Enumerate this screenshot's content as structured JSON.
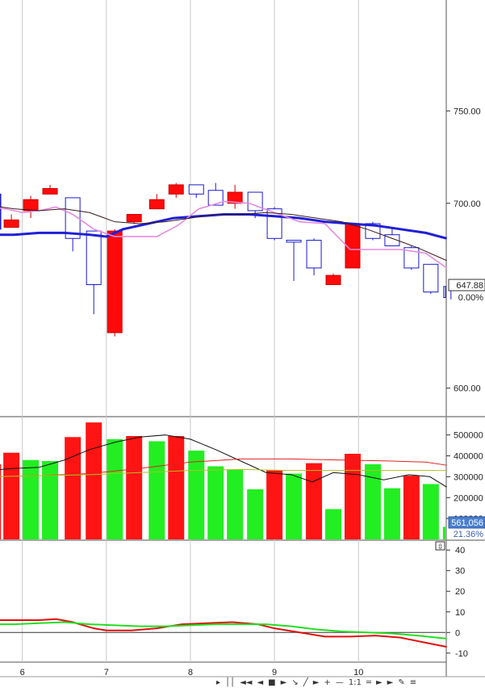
{
  "chart_data": [
    {
      "type": "candlestick",
      "panel": "price",
      "x_tick_labels": [
        "6",
        "7",
        "8",
        "9",
        "10"
      ],
      "x_tick_positions": [
        6,
        7,
        8,
        9,
        10
      ],
      "x_range": [
        5.6,
        10.9
      ],
      "y_tick_labels": [
        "750.00",
        "700.00",
        "600.00"
      ],
      "y_tick_values": [
        750,
        700,
        600
      ],
      "y_range": [
        585,
        810
      ],
      "last_price_label": "647.88",
      "change_label": "0.00%",
      "candles": [
        {
          "x": 5.65,
          "open": 686,
          "high": 705,
          "low": 679,
          "close": 705,
          "dir": "up"
        },
        {
          "x": 5.87,
          "open": 691,
          "high": 694,
          "low": 687,
          "close": 687,
          "dir": "down"
        },
        {
          "x": 6.1,
          "open": 702,
          "high": 704,
          "low": 692,
          "close": 696,
          "dir": "down"
        },
        {
          "x": 6.33,
          "open": 708,
          "high": 710,
          "low": 705,
          "close": 705,
          "dir": "down"
        },
        {
          "x": 6.6,
          "open": 681,
          "high": 703,
          "low": 674,
          "close": 703,
          "dir": "up"
        },
        {
          "x": 6.85,
          "open": 656,
          "high": 685,
          "low": 640,
          "close": 685,
          "dir": "up"
        },
        {
          "x": 7.1,
          "open": 685,
          "high": 686,
          "low": 628,
          "close": 630,
          "dir": "down"
        },
        {
          "x": 7.33,
          "open": 694,
          "high": 694,
          "low": 689,
          "close": 690,
          "dir": "down"
        },
        {
          "x": 7.6,
          "open": 702,
          "high": 705,
          "low": 697,
          "close": 697,
          "dir": "down"
        },
        {
          "x": 7.83,
          "open": 710,
          "high": 711,
          "low": 703,
          "close": 705,
          "dir": "down"
        },
        {
          "x": 8.07,
          "open": 705,
          "high": 710,
          "low": 703,
          "close": 710,
          "dir": "up"
        },
        {
          "x": 8.3,
          "open": 699,
          "high": 711,
          "low": 699,
          "close": 707,
          "dir": "up"
        },
        {
          "x": 8.53,
          "open": 706,
          "high": 710,
          "low": 697,
          "close": 700,
          "dir": "down"
        },
        {
          "x": 8.77,
          "open": 696,
          "high": 706,
          "low": 692,
          "close": 706,
          "dir": "up"
        },
        {
          "x": 9.0,
          "open": 681,
          "high": 698,
          "low": 680,
          "close": 697,
          "dir": "up"
        },
        {
          "x": 9.23,
          "open": 679,
          "high": 680,
          "low": 658,
          "close": 680,
          "dir": "up"
        },
        {
          "x": 9.47,
          "open": 665,
          "high": 681,
          "low": 661,
          "close": 680,
          "dir": "up"
        },
        {
          "x": 9.7,
          "open": 661,
          "high": 662,
          "low": 656,
          "close": 656,
          "dir": "down"
        },
        {
          "x": 9.93,
          "open": 689,
          "high": 689,
          "low": 665,
          "close": 665,
          "dir": "down"
        },
        {
          "x": 10.17,
          "open": 681,
          "high": 690,
          "low": 680,
          "close": 689,
          "dir": "up"
        },
        {
          "x": 10.4,
          "open": 677,
          "high": 687,
          "low": 677,
          "close": 683,
          "dir": "up"
        },
        {
          "x": 10.63,
          "open": 665,
          "high": 677,
          "low": 664,
          "close": 676,
          "dir": "up"
        },
        {
          "x": 10.86,
          "open": 652,
          "high": 667,
          "low": 651,
          "close": 667,
          "dir": "up"
        },
        {
          "x": 11.1,
          "open": 649,
          "high": 656,
          "low": 648,
          "close": 655,
          "dir": "up"
        }
      ],
      "lines": [
        {
          "color": "#1f1fd6",
          "width": 3,
          "points": [
            [
              5.6,
              683
            ],
            [
              5.9,
              683
            ],
            [
              6.2,
              684
            ],
            [
              6.5,
              684
            ],
            [
              6.8,
              683
            ],
            [
              7.0,
              682
            ],
            [
              7.2,
              686
            ],
            [
              7.5,
              689
            ],
            [
              7.8,
              692
            ],
            [
              8.1,
              693
            ],
            [
              8.4,
              694
            ],
            [
              8.7,
              694
            ],
            [
              9.0,
              693
            ],
            [
              9.3,
              692
            ],
            [
              9.6,
              690
            ],
            [
              9.9,
              689
            ],
            [
              10.2,
              688
            ],
            [
              10.5,
              686
            ],
            [
              10.8,
              684
            ],
            [
              11.05,
              681
            ]
          ]
        },
        {
          "color": "#e58ae0",
          "width": 1.6,
          "points": [
            [
              5.6,
              698
            ],
            [
              5.8,
              697
            ],
            [
              6.0,
              695
            ],
            [
              6.2,
              696
            ],
            [
              6.4,
              698
            ],
            [
              6.6,
              694
            ],
            [
              6.85,
              686
            ],
            [
              7.1,
              682
            ],
            [
              7.35,
              682
            ],
            [
              7.6,
              682
            ],
            [
              7.85,
              688
            ],
            [
              8.1,
              697
            ],
            [
              8.4,
              701
            ],
            [
              8.7,
              700
            ],
            [
              9.0,
              695
            ],
            [
              9.3,
              690
            ],
            [
              9.6,
              689
            ],
            [
              9.9,
              675
            ],
            [
              10.2,
              675
            ],
            [
              10.5,
              675
            ],
            [
              10.8,
              673
            ],
            [
              11.05,
              665
            ]
          ]
        },
        {
          "color": "#3a1a1a",
          "width": 1,
          "points": [
            [
              5.6,
              699
            ],
            [
              5.9,
              697
            ],
            [
              6.2,
              696
            ],
            [
              6.5,
              697
            ],
            [
              6.8,
              695
            ],
            [
              7.1,
              690
            ],
            [
              7.4,
              689
            ],
            [
              7.7,
              690
            ],
            [
              8.0,
              692
            ],
            [
              8.3,
              694
            ],
            [
              8.6,
              694
            ],
            [
              8.9,
              695
            ],
            [
              9.2,
              694
            ],
            [
              9.5,
              692
            ],
            [
              9.8,
              690
            ],
            [
              10.1,
              686
            ],
            [
              10.4,
              681
            ],
            [
              10.7,
              676
            ],
            [
              11.05,
              669
            ]
          ]
        }
      ]
    },
    {
      "type": "bar",
      "panel": "volume",
      "y_tick_labels": [
        "500000",
        "400000",
        "300000",
        "200000",
        "100000"
      ],
      "y_tick_values": [
        500000,
        400000,
        300000,
        200000,
        100000
      ],
      "y_range": [
        0,
        580000
      ],
      "value_label": "561,056",
      "pct_label": "21.36%",
      "bars": [
        {
          "x": 5.65,
          "value": 360000,
          "color": "#ff1414"
        },
        {
          "x": 5.87,
          "value": 415000,
          "color": "#ff1414"
        },
        {
          "x": 6.1,
          "value": 380000,
          "color": "#22ee22"
        },
        {
          "x": 6.33,
          "value": 375000,
          "color": "#22ee22"
        },
        {
          "x": 6.6,
          "value": 490000,
          "color": "#ff1414"
        },
        {
          "x": 6.85,
          "value": 560000,
          "color": "#ff1414"
        },
        {
          "x": 7.1,
          "value": 480000,
          "color": "#22ee22"
        },
        {
          "x": 7.33,
          "value": 495000,
          "color": "#ff1414"
        },
        {
          "x": 7.6,
          "value": 470000,
          "color": "#22ee22"
        },
        {
          "x": 7.83,
          "value": 495000,
          "color": "#ff1414"
        },
        {
          "x": 8.07,
          "value": 425000,
          "color": "#22ee22"
        },
        {
          "x": 8.3,
          "value": 350000,
          "color": "#22ee22"
        },
        {
          "x": 8.53,
          "value": 335000,
          "color": "#22ee22"
        },
        {
          "x": 8.77,
          "value": 240000,
          "color": "#22ee22"
        },
        {
          "x": 9.0,
          "value": 330000,
          "color": "#ff1414"
        },
        {
          "x": 9.23,
          "value": 315000,
          "color": "#22ee22"
        },
        {
          "x": 9.47,
          "value": 365000,
          "color": "#ff1414"
        },
        {
          "x": 9.7,
          "value": 145000,
          "color": "#22ee22"
        },
        {
          "x": 9.93,
          "value": 410000,
          "color": "#ff1414"
        },
        {
          "x": 10.17,
          "value": 360000,
          "color": "#22ee22"
        },
        {
          "x": 10.4,
          "value": 245000,
          "color": "#22ee22"
        },
        {
          "x": 10.63,
          "value": 305000,
          "color": "#ff1414"
        },
        {
          "x": 10.86,
          "value": 265000,
          "color": "#22ee22"
        },
        {
          "x": 11.1,
          "value": 60000,
          "color": "#22ee22"
        }
      ],
      "lines": [
        {
          "color": "#111111",
          "width": 1,
          "points": [
            [
              5.6,
              330000
            ],
            [
              5.9,
              340000
            ],
            [
              6.2,
              345000
            ],
            [
              6.5,
              380000
            ],
            [
              6.8,
              430000
            ],
            [
              7.1,
              465000
            ],
            [
              7.4,
              490000
            ],
            [
              7.7,
              500000
            ],
            [
              8.0,
              480000
            ],
            [
              8.3,
              430000
            ],
            [
              8.6,
              375000
            ],
            [
              8.9,
              320000
            ],
            [
              9.2,
              310000
            ],
            [
              9.45,
              275000
            ],
            [
              9.7,
              320000
            ],
            [
              10.0,
              310000
            ],
            [
              10.3,
              285000
            ],
            [
              10.6,
              310000
            ],
            [
              10.85,
              300000
            ],
            [
              11.05,
              250000
            ]
          ]
        },
        {
          "color": "#e02020",
          "width": 1,
          "points": [
            [
              5.6,
              300000
            ],
            [
              6.2,
              305000
            ],
            [
              6.8,
              315000
            ],
            [
              7.4,
              340000
            ],
            [
              8.0,
              370000
            ],
            [
              8.6,
              385000
            ],
            [
              9.2,
              385000
            ],
            [
              9.8,
              380000
            ],
            [
              10.4,
              375000
            ],
            [
              10.8,
              370000
            ],
            [
              11.05,
              355000
            ]
          ]
        },
        {
          "color": "#b0c020",
          "width": 1,
          "points": [
            [
              5.6,
              300000
            ],
            [
              6.2,
              305000
            ],
            [
              6.8,
              310000
            ],
            [
              7.4,
              320000
            ],
            [
              8.0,
              330000
            ],
            [
              8.6,
              335000
            ],
            [
              9.2,
              330000
            ],
            [
              9.8,
              330000
            ],
            [
              10.4,
              330000
            ],
            [
              11.05,
              330000
            ]
          ]
        }
      ]
    },
    {
      "type": "line",
      "panel": "oscillator",
      "y_tick_labels": [
        "40",
        "30",
        "20",
        "10",
        "0",
        "-10"
      ],
      "y_tick_values": [
        40,
        30,
        20,
        10,
        0,
        -10
      ],
      "y_range": [
        -14,
        44
      ],
      "series": [
        {
          "color": "#e01010",
          "width": 2,
          "values": [
            [
              5.6,
              6
            ],
            [
              5.9,
              6
            ],
            [
              6.2,
              6
            ],
            [
              6.4,
              6.5
            ],
            [
              6.6,
              5
            ],
            [
              6.85,
              2
            ],
            [
              7.0,
              1
            ],
            [
              7.3,
              1
            ],
            [
              7.6,
              2
            ],
            [
              7.9,
              4
            ],
            [
              8.2,
              4.5
            ],
            [
              8.5,
              5
            ],
            [
              8.8,
              4
            ],
            [
              9.0,
              2
            ],
            [
              9.3,
              0
            ],
            [
              9.6,
              -2
            ],
            [
              9.9,
              -2
            ],
            [
              10.2,
              -1.5
            ],
            [
              10.5,
              -2.5
            ],
            [
              10.8,
              -5
            ],
            [
              11.05,
              -7
            ]
          ]
        },
        {
          "color": "#22dd22",
          "width": 2,
          "values": [
            [
              5.6,
              4
            ],
            [
              5.9,
              4
            ],
            [
              6.2,
              4.5
            ],
            [
              6.5,
              5
            ],
            [
              6.8,
              4
            ],
            [
              7.1,
              3.5
            ],
            [
              7.4,
              3
            ],
            [
              7.7,
              3
            ],
            [
              8.0,
              3.5
            ],
            [
              8.3,
              4
            ],
            [
              8.6,
              4
            ],
            [
              8.9,
              4
            ],
            [
              9.2,
              3
            ],
            [
              9.5,
              1.5
            ],
            [
              9.8,
              0.5
            ],
            [
              10.1,
              0
            ],
            [
              10.4,
              -0.5
            ],
            [
              10.7,
              -1.5
            ],
            [
              11.05,
              -3
            ]
          ]
        }
      ]
    }
  ],
  "toolbar": {
    "items": [
      "▸",
      "││",
      "◄◄",
      "◄",
      "■",
      "►",
      "↘",
      "╱",
      "►",
      "+",
      "—",
      "1:1",
      "═",
      "►",
      "►",
      "✎",
      "≡"
    ]
  }
}
